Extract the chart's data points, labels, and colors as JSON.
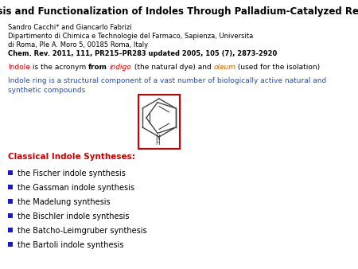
{
  "title": "Synthesis and Functionalization of Indoles Through Palladium-Catalyzed Reactions",
  "authors": "Sandro Cacchi* and Giancarlo Fabrizi",
  "affiliation1": "Dipartimento di Chimica e Technologie del Farmaco, Sapienza, Universita",
  "affiliation2": "di Roma, Ple A. Moro 5, 00185 Roma, Italy",
  "journal": "Chem. Rev. 2011, 111, PR215–PR283 updated 2005, 105 (7), 2873-2920",
  "line1_parts": [
    {
      "text": "Indole",
      "color": "#cc0000",
      "style": "normal"
    },
    {
      "text": " is the acronym ",
      "color": "#000000",
      "style": "normal"
    },
    {
      "text": "from",
      "color": "#000000",
      "style": "bold"
    },
    {
      "text": " ",
      "color": "#000000",
      "style": "normal"
    },
    {
      "text": "indigo",
      "color": "#cc0000",
      "style": "italic"
    },
    {
      "text": " (the natural dye) and ",
      "color": "#000000",
      "style": "normal"
    },
    {
      "text": "oleum",
      "color": "#cc6600",
      "style": "italic"
    },
    {
      "text": " (used for the isolation)",
      "color": "#000000",
      "style": "normal"
    }
  ],
  "line2": "Indole ring is a structural component of a vast number of biologically active natural and\nsynthetic compounds",
  "line2_color": "#1a4fcc",
  "classical_label": "Classical Indole Syntheses:",
  "classical_color": "#cc0000",
  "syntheses": [
    "the Fischer indole synthesis",
    "the Gassman indole synthesis",
    "the Madelung synthesis",
    "the Bischler indole synthesis",
    "the Batcho-Leimgruber synthesis",
    "the Bartoli indole synthesis"
  ],
  "bullet_color": "#1a1acc",
  "background_color": "#ffffff",
  "title_fontsize": 8.5,
  "body_fontsize": 6.0,
  "list_fontsize": 7.0,
  "classical_fontsize": 7.5
}
